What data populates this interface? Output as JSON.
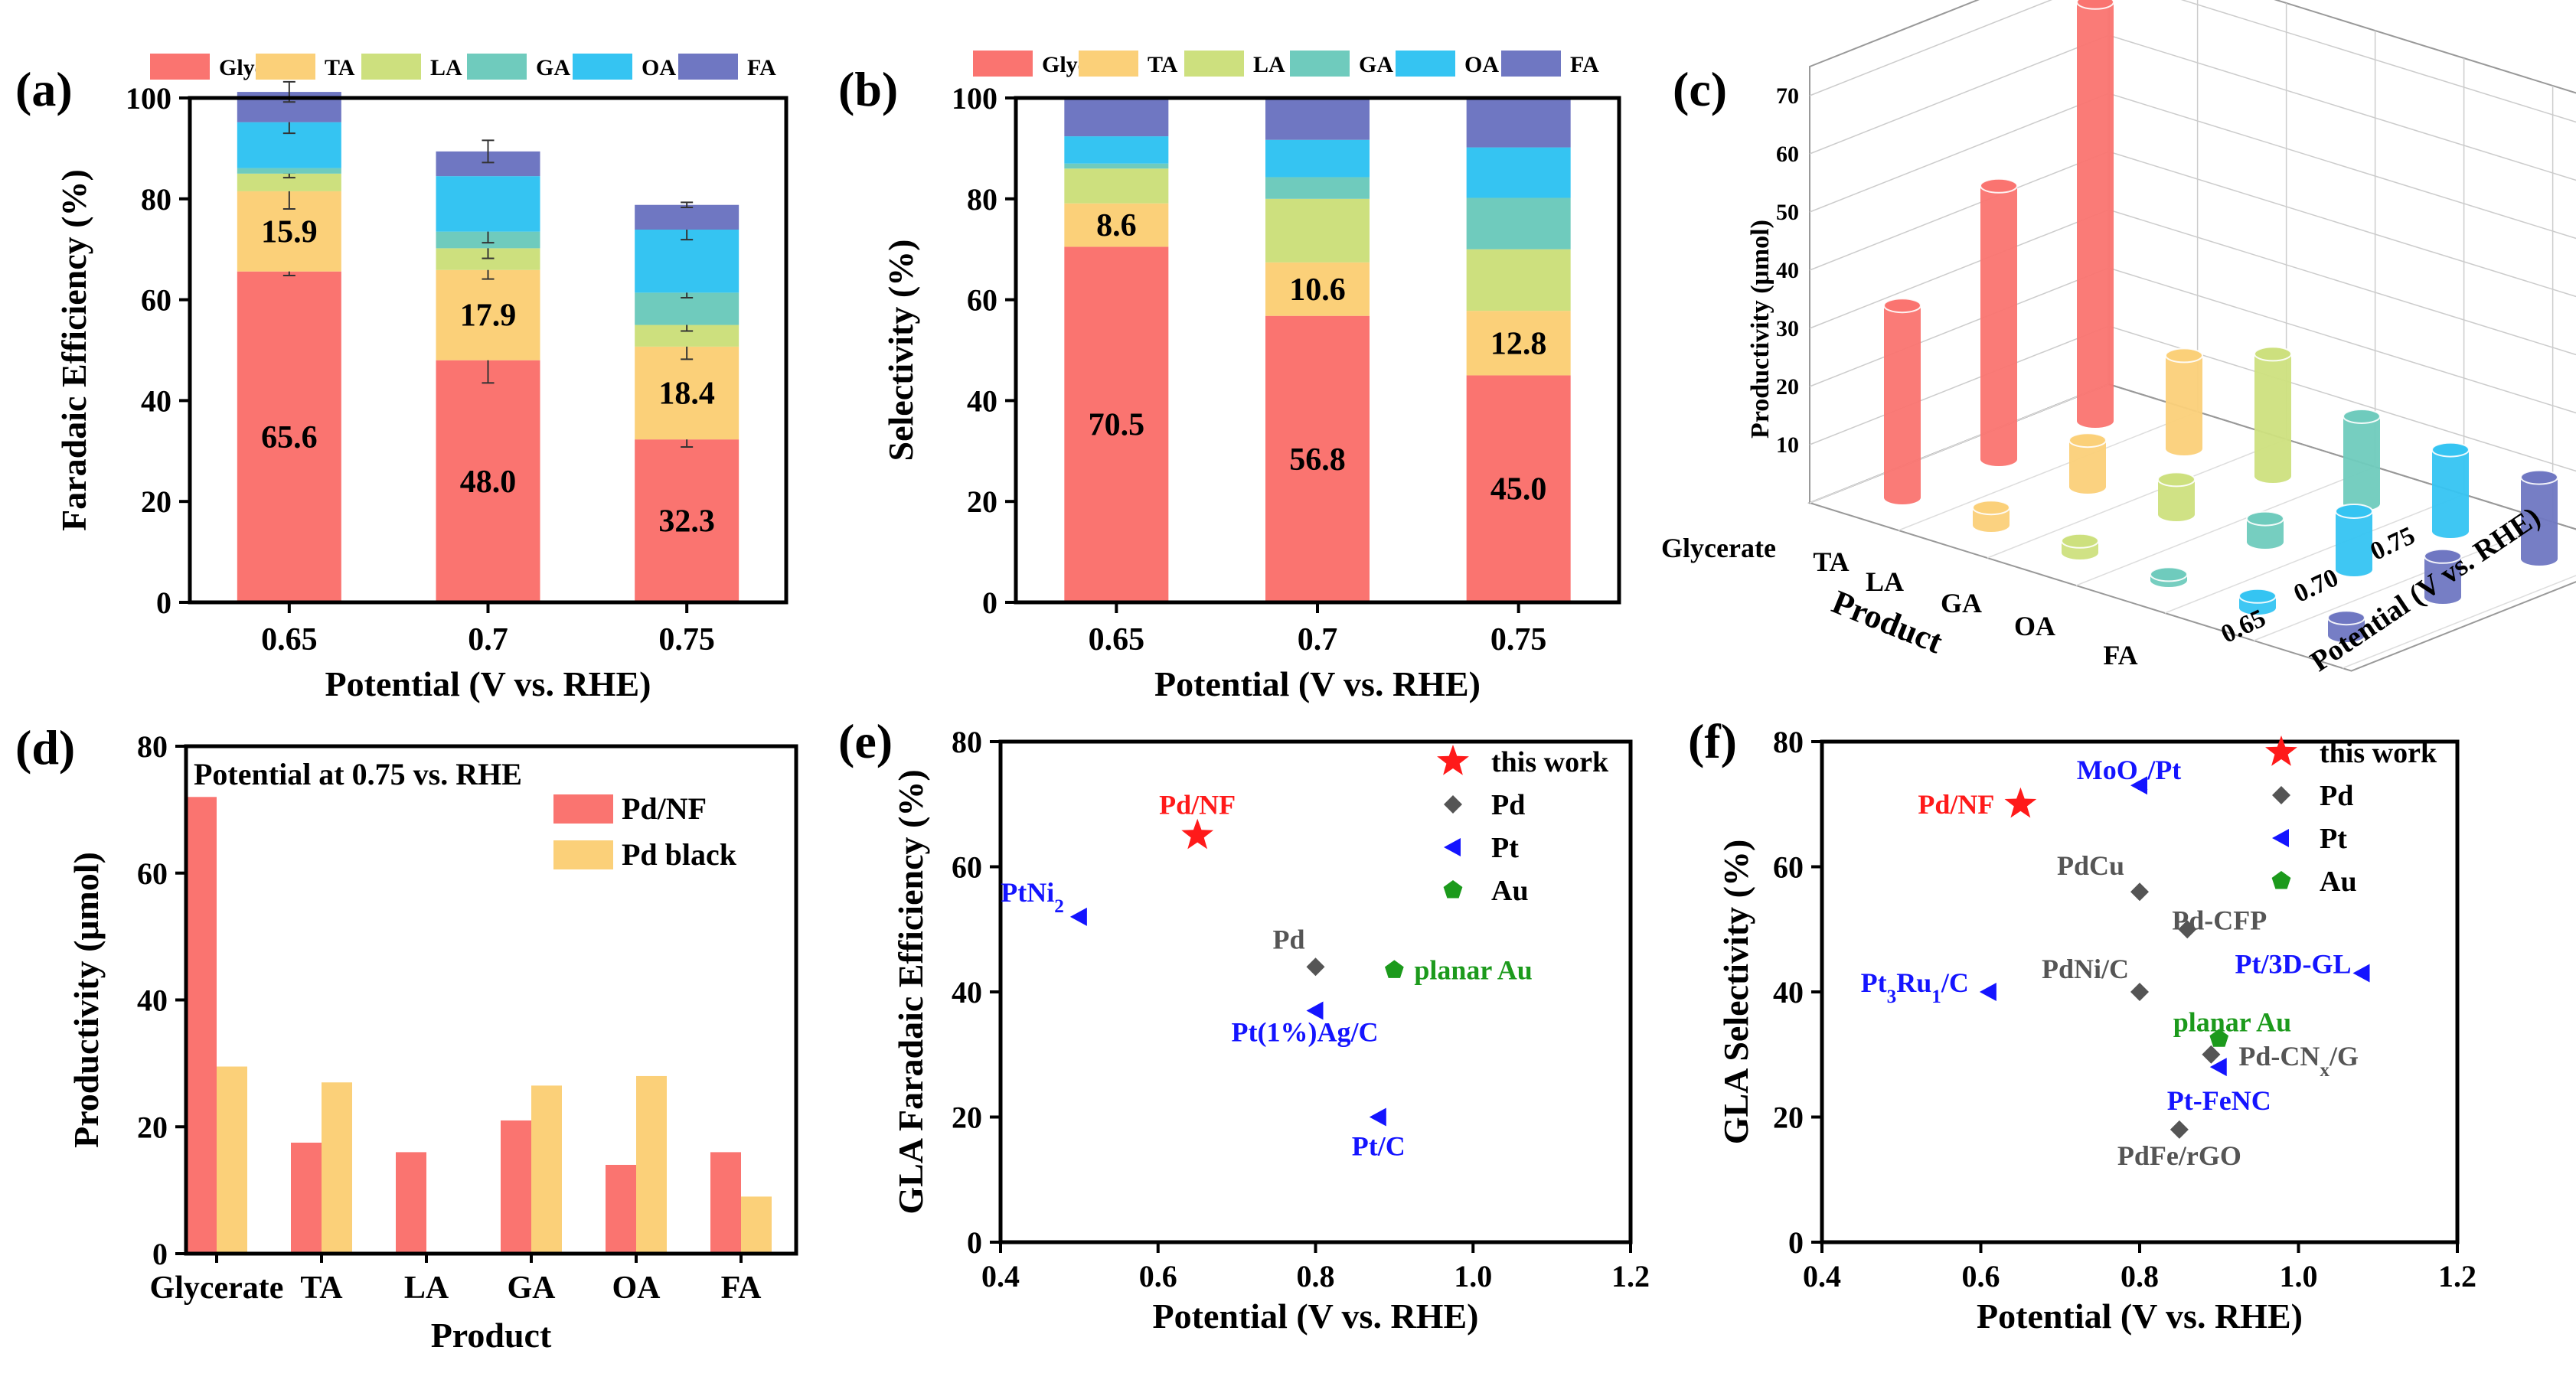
{
  "colors": {
    "Glycerate": "#fa7470",
    "TA": "#fbd079",
    "LA": "#cde07e",
    "GA": "#6fcbbd",
    "OA": "#35c4f2",
    "FA": "#6f77c2",
    "PdNF": "#fa7470",
    "PdBlack": "#fbd079",
    "red": "#ff1a1a",
    "black": "#555555",
    "blue": "#1414ff",
    "green": "#1c9a1c"
  },
  "panel_labels": [
    "(a)",
    "(b)",
    "(c)",
    "(d)",
    "(e)",
    "(f)"
  ],
  "chart_data": [
    {
      "id": "a",
      "type": "bar",
      "stacked": true,
      "title": "",
      "legend": [
        "Glycerate",
        "TA",
        "LA",
        "GA",
        "OA",
        "FA"
      ],
      "categories": [
        "0.65",
        "0.7",
        "0.75"
      ],
      "series": [
        {
          "name": "Glycerate",
          "values": [
            65.6,
            48.0,
            32.3
          ],
          "labels": [
            "65.6",
            "48.0",
            "32.3"
          ]
        },
        {
          "name": "TA",
          "values": [
            15.9,
            17.9,
            18.4
          ],
          "labels": [
            "15.9",
            "17.9",
            "18.4"
          ]
        },
        {
          "name": "LA",
          "values": [
            3.5,
            4.3,
            4.3
          ]
        },
        {
          "name": "GA",
          "values": [
            1.1,
            3.3,
            6.4
          ]
        },
        {
          "name": "OA",
          "values": [
            9.1,
            11.0,
            12.5
          ]
        },
        {
          "name": "FA",
          "values": [
            6.0,
            4.9,
            4.9
          ]
        }
      ],
      "error_bars": [
        {
          "series": "Glycerate",
          "values": [
            0.8,
            4.5,
            1.5
          ]
        },
        {
          "series": "TA",
          "values": [
            3.5,
            1.8,
            2.5
          ]
        },
        {
          "series": "LA",
          "values": [
            0.8,
            2.0,
            1.2
          ]
        },
        {
          "series": "GA",
          "values": [
            0.0,
            2.2,
            1.0
          ]
        },
        {
          "series": "OA",
          "values": [
            2.2,
            0.0,
            2.0
          ]
        },
        {
          "series": "FA",
          "values": [
            2.0,
            2.2,
            0.5
          ]
        }
      ],
      "xlabel": "Potential (V vs. RHE)",
      "ylabel": "Faradaic Efficiency (%)",
      "ylim": [
        0,
        100
      ],
      "yticks": [
        "0",
        "20",
        "40",
        "60",
        "80",
        "100"
      ]
    },
    {
      "id": "b",
      "type": "bar",
      "stacked": true,
      "title": "",
      "legend": [
        "Glycerate",
        "TA",
        "LA",
        "GA",
        "OA",
        "FA"
      ],
      "categories": [
        "0.65",
        "0.7",
        "0.75"
      ],
      "series": [
        {
          "name": "Glycerate",
          "values": [
            70.5,
            56.8,
            45.0
          ],
          "labels": [
            "70.5",
            "56.8",
            "45.0"
          ]
        },
        {
          "name": "TA",
          "values": [
            8.6,
            10.6,
            12.8
          ],
          "labels": [
            "8.6",
            "10.6",
            "12.8"
          ]
        },
        {
          "name": "LA",
          "values": [
            6.9,
            12.6,
            12.2
          ]
        },
        {
          "name": "GA",
          "values": [
            1.0,
            4.3,
            10.2
          ]
        },
        {
          "name": "OA",
          "values": [
            5.4,
            7.4,
            10.0
          ]
        },
        {
          "name": "FA",
          "values": [
            7.6,
            8.3,
            9.8
          ]
        }
      ],
      "xlabel": "Potential (V vs. RHE)",
      "ylabel": "Selectivity (%)",
      "ylim": [
        0,
        100
      ],
      "yticks": [
        "0",
        "20",
        "40",
        "60",
        "80",
        "100"
      ]
    },
    {
      "id": "c",
      "type": "bar3d",
      "products": [
        "Glycerate",
        "TA",
        "LA",
        "GA",
        "OA",
        "FA"
      ],
      "potentials": [
        "0.65",
        "0.70",
        "0.75"
      ],
      "values": [
        [
          33,
          47,
          72
        ],
        [
          3,
          8,
          16
        ],
        [
          2,
          6,
          21
        ],
        [
          1,
          4,
          15
        ],
        [
          2,
          10,
          14
        ],
        [
          3,
          7,
          14
        ]
      ],
      "zlim": [
        0,
        75
      ],
      "zticks": [
        "10",
        "20",
        "30",
        "40",
        "50",
        "60",
        "70"
      ],
      "xlabel": "Product",
      "ylabel": "Potential (V vs. RHE)",
      "zlabel": "Productivity (μmol)"
    },
    {
      "id": "d",
      "type": "bar",
      "title": "Potential at 0.75 vs. RHE",
      "categories": [
        "Glycerate",
        "TA",
        "LA",
        "GA",
        "OA",
        "FA"
      ],
      "series": [
        {
          "name": "Pd/NF",
          "values": [
            72.0,
            17.5,
            16.0,
            21.0,
            14.0,
            16.0
          ]
        },
        {
          "name": "Pd black",
          "values": [
            29.5,
            27.0,
            0,
            26.5,
            28.0,
            9.0
          ]
        }
      ],
      "xlabel": "Product",
      "ylabel": "Productivity (μmol)",
      "ylim": [
        0,
        80
      ],
      "yticks": [
        "0",
        "20",
        "40",
        "60",
        "80"
      ]
    },
    {
      "id": "e",
      "type": "scatter",
      "legend": [
        "this work",
        "Pd",
        "Pt",
        "Au"
      ],
      "points": [
        {
          "x": 0.65,
          "y": 65,
          "group": "this work",
          "label": "Pd/NF"
        },
        {
          "x": 0.5,
          "y": 52,
          "group": "Pt",
          "label": "PtNi",
          "sub": "2",
          "suffix": ""
        },
        {
          "x": 0.8,
          "y": 44,
          "group": "Pd",
          "label": "Pd"
        },
        {
          "x": 0.9,
          "y": 43.5,
          "group": "Au",
          "label": "planar Au"
        },
        {
          "x": 0.8,
          "y": 37,
          "group": "Pt",
          "label": "Pt(1%)Ag/C"
        },
        {
          "x": 0.88,
          "y": 20,
          "group": "Pt",
          "label": "Pt/C"
        }
      ],
      "xlabel": "Potential (V vs. RHE)",
      "ylabel": "GLA  Faradaic Efficiency (%)",
      "xlim": [
        0.4,
        1.2
      ],
      "ylim": [
        0,
        80
      ],
      "xticks": [
        "0.4",
        "0.6",
        "0.8",
        "1.0",
        "1.2"
      ],
      "yticks": [
        "0",
        "20",
        "40",
        "60",
        "80"
      ]
    },
    {
      "id": "f",
      "type": "scatter",
      "legend": [
        "this work",
        "Pd",
        "Pt",
        "Au"
      ],
      "points": [
        {
          "x": 0.65,
          "y": 70,
          "group": "this work",
          "label": "Pd/NF"
        },
        {
          "x": 0.8,
          "y": 73,
          "group": "Pt",
          "label": "MoO",
          "sub": "x",
          "suffix": "/Pt"
        },
        {
          "x": 0.8,
          "y": 56,
          "group": "Pd",
          "label": "PdCu"
        },
        {
          "x": 0.86,
          "y": 50,
          "group": "Pd",
          "label": "Pd-CFP"
        },
        {
          "x": 0.8,
          "y": 40,
          "group": "Pd",
          "label": "PdNi/C"
        },
        {
          "x": 0.61,
          "y": 40,
          "group": "Pt",
          "label": "Pt",
          "sub": "3",
          "mid": "Ru",
          "sub2": "1",
          "suffix": "/C"
        },
        {
          "x": 1.08,
          "y": 43,
          "group": "Pt",
          "label": "Pt/3D-GL"
        },
        {
          "x": 0.9,
          "y": 32.5,
          "group": "Au",
          "label": "planar Au"
        },
        {
          "x": 0.89,
          "y": 30,
          "group": "Pd",
          "label": "Pd-CN",
          "sub": "x",
          "suffix": "/G"
        },
        {
          "x": 0.9,
          "y": 28,
          "group": "Pt",
          "label": "Pt-FeNC"
        },
        {
          "x": 0.85,
          "y": 18,
          "group": "Pd",
          "label": "PdFe/rGO"
        }
      ],
      "xlabel": "Potential (V vs. RHE)",
      "ylabel": "GLA  Selectivity (%)",
      "xlim": [
        0.4,
        1.2
      ],
      "ylim": [
        0,
        80
      ],
      "xticks": [
        "0.4",
        "0.6",
        "0.8",
        "1.0",
        "1.2"
      ],
      "yticks": [
        "0",
        "20",
        "40",
        "60",
        "80"
      ]
    }
  ]
}
